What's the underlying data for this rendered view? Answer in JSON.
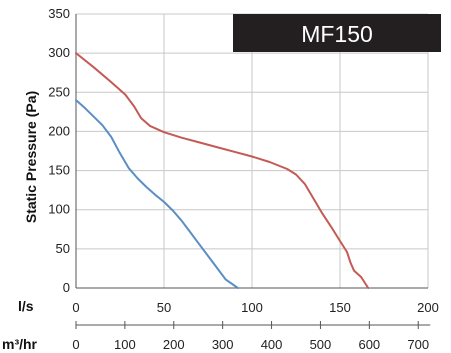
{
  "chart_data": {
    "type": "line",
    "title": "MF150",
    "ylabel": "Static Pressure (Pa)",
    "x_axes": [
      {
        "label": "l/s",
        "ticks": [
          0,
          50,
          100,
          150,
          200
        ]
      },
      {
        "label": "m³/hr",
        "ticks": [
          0,
          100,
          200,
          300,
          400,
          500,
          600,
          700
        ]
      }
    ],
    "xlim": [
      0,
      200
    ],
    "ylim": [
      0,
      350
    ],
    "yticks": [
      0,
      50,
      100,
      150,
      200,
      250,
      300,
      350
    ],
    "grid": true,
    "series": [
      {
        "color": "#c45a55",
        "points": [
          [
            0,
            300
          ],
          [
            10,
            282
          ],
          [
            20,
            263
          ],
          [
            28,
            247
          ],
          [
            33,
            232
          ],
          [
            37,
            217
          ],
          [
            42,
            207
          ],
          [
            50,
            199
          ],
          [
            60,
            192
          ],
          [
            70,
            186
          ],
          [
            80,
            180
          ],
          [
            90,
            174
          ],
          [
            100,
            168
          ],
          [
            110,
            161
          ],
          [
            120,
            152
          ],
          [
            125,
            145
          ],
          [
            130,
            133
          ],
          [
            135,
            114
          ],
          [
            140,
            95
          ],
          [
            145,
            78
          ],
          [
            150,
            60
          ],
          [
            154,
            46
          ],
          [
            156,
            32
          ],
          [
            158,
            22
          ],
          [
            162,
            14
          ],
          [
            166,
            0
          ]
        ]
      },
      {
        "color": "#5b8fc4",
        "points": [
          [
            0,
            240
          ],
          [
            5,
            230
          ],
          [
            10,
            219
          ],
          [
            15,
            208
          ],
          [
            20,
            193
          ],
          [
            25,
            172
          ],
          [
            30,
            153
          ],
          [
            35,
            140
          ],
          [
            40,
            129
          ],
          [
            45,
            119
          ],
          [
            50,
            110
          ],
          [
            55,
            99
          ],
          [
            60,
            86
          ],
          [
            65,
            71
          ],
          [
            70,
            56
          ],
          [
            75,
            41
          ],
          [
            80,
            26
          ],
          [
            85,
            11
          ],
          [
            92,
            0
          ]
        ]
      }
    ]
  }
}
